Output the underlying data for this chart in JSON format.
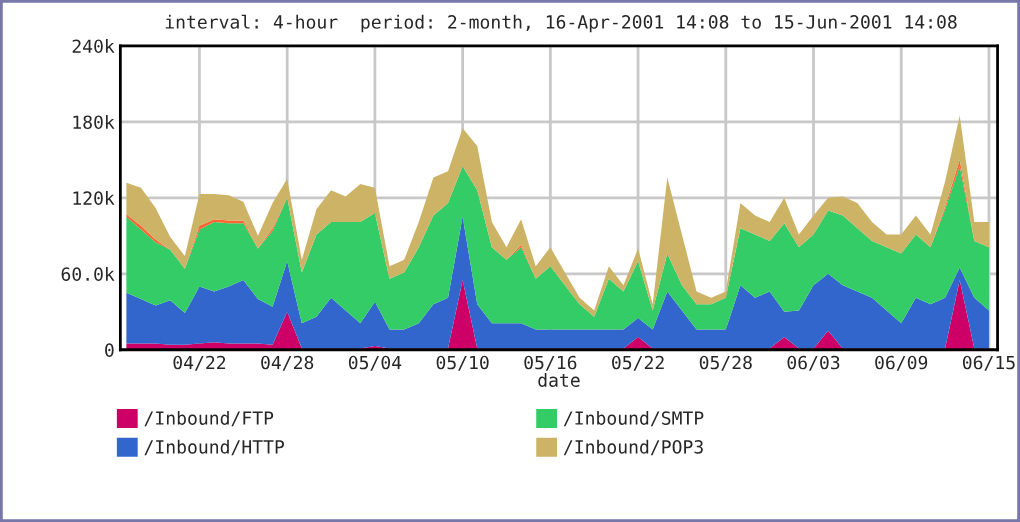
{
  "chart_data": {
    "type": "area",
    "stacked": true,
    "title": "interval: 4-hour  period: 2-month, 16-Apr-2001 14:08 to 15-Jun-2001 14:08",
    "xlabel": "date",
    "x": [
      "2001-04-17",
      "2001-04-18",
      "2001-04-19",
      "2001-04-20",
      "2001-04-21",
      "2001-04-22",
      "2001-04-23",
      "2001-04-24",
      "2001-04-25",
      "2001-04-26",
      "2001-04-27",
      "2001-04-28",
      "2001-04-29",
      "2001-04-30",
      "2001-05-01",
      "2001-05-02",
      "2001-05-03",
      "2001-05-04",
      "2001-05-05",
      "2001-05-06",
      "2001-05-07",
      "2001-05-08",
      "2001-05-09",
      "2001-05-10",
      "2001-05-11",
      "2001-05-12",
      "2001-05-13",
      "2001-05-14",
      "2001-05-15",
      "2001-05-16",
      "2001-05-17",
      "2001-05-18",
      "2001-05-19",
      "2001-05-20",
      "2001-05-21",
      "2001-05-22",
      "2001-05-23",
      "2001-05-24",
      "2001-05-25",
      "2001-05-26",
      "2001-05-27",
      "2001-05-28",
      "2001-05-29",
      "2001-05-30",
      "2001-05-31",
      "2001-06-01",
      "2001-06-02",
      "2001-06-03",
      "2001-06-04",
      "2001-06-05",
      "2001-06-06",
      "2001-06-07",
      "2001-06-08",
      "2001-06-09",
      "2001-06-10",
      "2001-06-11",
      "2001-06-12",
      "2001-06-13",
      "2001-06-14",
      "2001-06-15"
    ],
    "series": [
      {
        "name": "/Inbound/FTP",
        "color": "#cc0066",
        "values": [
          5,
          5,
          5,
          4,
          4,
          5,
          6,
          5,
          5,
          5,
          4,
          30,
          1,
          1,
          1,
          1,
          1,
          3,
          1,
          1,
          1,
          1,
          1,
          55,
          1,
          1,
          1,
          1,
          1,
          1,
          1,
          1,
          1,
          1,
          1,
          10,
          1,
          1,
          1,
          1,
          1,
          1,
          1,
          1,
          1,
          10,
          1,
          1,
          15,
          1,
          1,
          1,
          1,
          1,
          1,
          1,
          1,
          55,
          1,
          1
        ]
      },
      {
        "name": "/Inbound/HTTP",
        "color": "#3366cc",
        "values": [
          40,
          35,
          30,
          35,
          25,
          45,
          40,
          45,
          50,
          35,
          30,
          40,
          20,
          25,
          40,
          30,
          20,
          35,
          15,
          15,
          20,
          35,
          40,
          50,
          35,
          20,
          20,
          20,
          15,
          15,
          15,
          15,
          15,
          15,
          15,
          15,
          15,
          45,
          30,
          15,
          15,
          15,
          50,
          40,
          45,
          20,
          30,
          50,
          45,
          50,
          45,
          40,
          30,
          20,
          40,
          35,
          40,
          10,
          40,
          30
        ]
      },
      {
        "name": "/Inbound/SMTP",
        "color": "#33cc66",
        "values": [
          60,
          55,
          50,
          40,
          35,
          45,
          55,
          50,
          45,
          40,
          60,
          50,
          40,
          65,
          60,
          70,
          80,
          70,
          40,
          45,
          60,
          70,
          75,
          40,
          90,
          60,
          50,
          60,
          40,
          50,
          35,
          20,
          10,
          40,
          30,
          45,
          15,
          30,
          20,
          20,
          20,
          25,
          45,
          50,
          40,
          70,
          50,
          40,
          50,
          55,
          50,
          45,
          50,
          55,
          50,
          45,
          70,
          80,
          45,
          50
        ]
      },
      {
        "color": "#ff6633",
        "values": [
          2,
          3,
          2,
          0,
          0,
          3,
          2,
          2,
          2,
          0,
          2,
          0,
          0,
          0,
          0,
          0,
          0,
          0,
          0,
          0,
          0,
          0,
          0,
          0,
          0,
          0,
          0,
          2,
          0,
          0,
          0,
          0,
          0,
          0,
          0,
          0,
          0,
          0,
          0,
          0,
          0,
          0,
          0,
          0,
          0,
          0,
          0,
          0,
          0,
          0,
          0,
          0,
          0,
          0,
          0,
          0,
          2,
          5,
          0,
          0
        ]
      },
      {
        "name": "/Inbound/POP3",
        "color": "#ccb366",
        "values": [
          25,
          30,
          25,
          10,
          10,
          25,
          20,
          20,
          15,
          10,
          20,
          15,
          10,
          20,
          25,
          20,
          30,
          20,
          10,
          10,
          20,
          30,
          25,
          30,
          35,
          20,
          10,
          20,
          10,
          15,
          10,
          5,
          5,
          10,
          5,
          10,
          5,
          60,
          40,
          10,
          5,
          5,
          20,
          15,
          15,
          20,
          10,
          15,
          10,
          15,
          20,
          15,
          10,
          15,
          15,
          10,
          20,
          35,
          15,
          20
        ]
      }
    ],
    "xlim": [
      "2001-04-16T14:08",
      "2001-06-15T14:08"
    ],
    "xticks": [
      {
        "value": "2001-04-22",
        "label": "04/22"
      },
      {
        "value": "2001-04-28",
        "label": "04/28"
      },
      {
        "value": "2001-05-04",
        "label": "05/04"
      },
      {
        "value": "2001-05-10",
        "label": "05/10"
      },
      {
        "value": "2001-05-16",
        "label": "05/16"
      },
      {
        "value": "2001-05-22",
        "label": "05/22"
      },
      {
        "value": "2001-05-28",
        "label": "05/28"
      },
      {
        "value": "2001-06-03",
        "label": "06/03"
      },
      {
        "value": "2001-06-09",
        "label": "06/09"
      },
      {
        "value": "2001-06-15",
        "label": "06/15"
      }
    ],
    "ylim": [
      0,
      240
    ],
    "yticks": [
      0,
      {
        "value": 60,
        "label": "60.0k"
      },
      {
        "value": 120,
        "label": "120k"
      },
      {
        "value": 180,
        "label": "180k"
      },
      {
        "value": 240,
        "label": "240k"
      }
    ],
    "grid": true,
    "legend": "bottom"
  }
}
